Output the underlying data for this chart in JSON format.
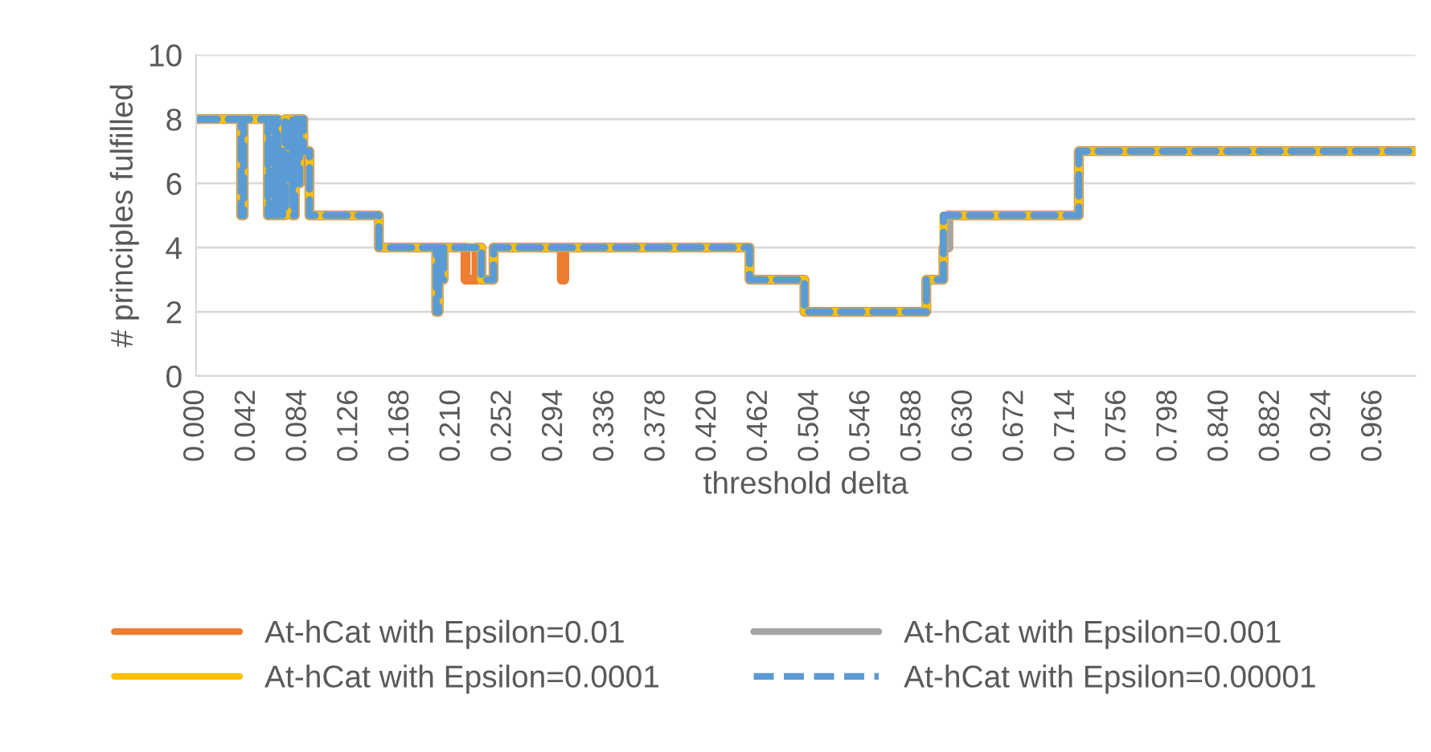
{
  "chart_data": {
    "type": "step",
    "xlabel": "threshold delta",
    "ylabel": "# principles fulfilled",
    "xlim": [
      0,
      1.0
    ],
    "ylim": [
      0,
      10
    ],
    "yticks": [
      0,
      2,
      4,
      6,
      8,
      10
    ],
    "xticks": [
      {
        "value": 0,
        "label": "0.000"
      },
      {
        "value": 0.042,
        "label": "0.042"
      },
      {
        "value": 0.084,
        "label": "0.084"
      },
      {
        "value": 0.126,
        "label": "0.126"
      },
      {
        "value": 0.168,
        "label": "0.168"
      },
      {
        "value": 0.21,
        "label": "0.210"
      },
      {
        "value": 0.252,
        "label": "0.252"
      },
      {
        "value": 0.294,
        "label": "0.294"
      },
      {
        "value": 0.336,
        "label": "0.336"
      },
      {
        "value": 0.378,
        "label": "0.378"
      },
      {
        "value": 0.42,
        "label": "0.420"
      },
      {
        "value": 0.462,
        "label": "0.462"
      },
      {
        "value": 0.504,
        "label": "0.504"
      },
      {
        "value": 0.546,
        "label": "0.546"
      },
      {
        "value": 0.588,
        "label": "0.588"
      },
      {
        "value": 0.63,
        "label": "0.630"
      },
      {
        "value": 0.672,
        "label": "0.672"
      },
      {
        "value": 0.714,
        "label": "0.714"
      },
      {
        "value": 0.756,
        "label": "0.756"
      },
      {
        "value": 0.798,
        "label": "0.798"
      },
      {
        "value": 0.84,
        "label": "0.840"
      },
      {
        "value": 0.882,
        "label": "0.882"
      },
      {
        "value": 0.924,
        "label": "0.924"
      },
      {
        "value": 0.966,
        "label": "0.966"
      }
    ],
    "grid": "y",
    "legend": "bottom",
    "series": [
      {
        "name": "At-hCat with Epsilon=0.01",
        "color": "#ed7d31",
        "line_style": "solid",
        "x": [
          0,
          0.037,
          0.039,
          0.059,
          0.06,
          0.063,
          0.065,
          0.067,
          0.069,
          0.071,
          0.073,
          0.075,
          0.077,
          0.079,
          0.081,
          0.083,
          0.085,
          0.088,
          0.093,
          0.15,
          0.197,
          0.199,
          0.201,
          0.203,
          0.221,
          0.23,
          0.234,
          0.244,
          0.3,
          0.302,
          0.454,
          0.499,
          0.599,
          0.613,
          0.617,
          0.724,
          1.0
        ],
        "values": [
          8,
          5,
          8,
          5,
          8,
          5,
          8,
          5,
          7,
          5,
          8,
          6,
          8,
          5,
          8,
          6,
          8,
          7,
          5,
          4,
          2,
          4,
          3,
          4,
          3,
          4,
          3,
          4,
          3,
          4,
          3,
          2,
          3,
          4,
          5,
          7,
          7
        ]
      },
      {
        "name": "At-hCat with Epsilon=0.001",
        "color": "#a5a5a5",
        "line_style": "solid",
        "x": [
          0,
          0.037,
          0.039,
          0.059,
          0.06,
          0.063,
          0.065,
          0.067,
          0.069,
          0.071,
          0.073,
          0.075,
          0.077,
          0.079,
          0.081,
          0.083,
          0.085,
          0.088,
          0.093,
          0.15,
          0.197,
          0.199,
          0.201,
          0.203,
          0.234,
          0.244,
          0.454,
          0.499,
          0.599,
          0.613,
          0.617,
          0.724,
          1.0
        ],
        "values": [
          8,
          5,
          8,
          5,
          8,
          5,
          8,
          5,
          7,
          5,
          8,
          6,
          8,
          5,
          8,
          6,
          8,
          7,
          5,
          4,
          2,
          4,
          3,
          4,
          3,
          4,
          3,
          2,
          3,
          4,
          5,
          7,
          7
        ]
      },
      {
        "name": "At-hCat with Epsilon=0.0001",
        "color": "#ffc000",
        "line_style": "solid",
        "x": [
          0,
          0.037,
          0.039,
          0.059,
          0.06,
          0.063,
          0.065,
          0.067,
          0.069,
          0.071,
          0.073,
          0.075,
          0.077,
          0.079,
          0.081,
          0.083,
          0.085,
          0.088,
          0.093,
          0.15,
          0.197,
          0.199,
          0.201,
          0.203,
          0.234,
          0.244,
          0.454,
          0.499,
          0.599,
          0.613,
          0.724,
          1.0
        ],
        "values": [
          8,
          5,
          8,
          5,
          8,
          5,
          8,
          5,
          7,
          5,
          8,
          6,
          8,
          5,
          8,
          6,
          8,
          7,
          5,
          4,
          2,
          4,
          3,
          4,
          3,
          4,
          3,
          2,
          3,
          5,
          7,
          7
        ]
      },
      {
        "name": "At-hCat with Epsilon=0.00001",
        "color": "#5b9bd5",
        "line_style": "dashed",
        "x": [
          0,
          0.037,
          0.039,
          0.059,
          0.06,
          0.063,
          0.065,
          0.067,
          0.069,
          0.071,
          0.073,
          0.075,
          0.077,
          0.079,
          0.081,
          0.083,
          0.085,
          0.088,
          0.093,
          0.15,
          0.197,
          0.199,
          0.201,
          0.203,
          0.234,
          0.244,
          0.454,
          0.499,
          0.599,
          0.613,
          0.724,
          1.0
        ],
        "values": [
          8,
          5,
          8,
          5,
          8,
          5,
          8,
          5,
          7,
          5,
          8,
          6,
          8,
          5,
          8,
          6,
          8,
          7,
          5,
          4,
          2,
          4,
          3,
          4,
          3,
          4,
          3,
          2,
          3,
          5,
          7,
          7
        ]
      }
    ]
  }
}
